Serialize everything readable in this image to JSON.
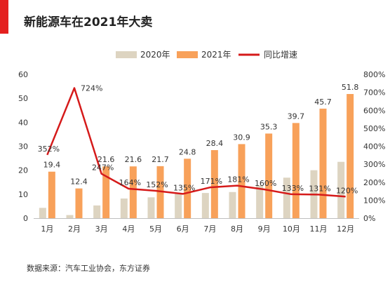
{
  "header": {
    "title": "新能源车在2021年大卖",
    "accent_color": "#e4201f"
  },
  "footer": {
    "source": "数据来源：汽车工业协会，东方证券"
  },
  "colors": {
    "series_2020": "#ddd4c1",
    "series_2021": "#f8a15a",
    "growth_line": "#d51a1a"
  },
  "chart_data": {
    "type": "bar",
    "categories": [
      "1月",
      "2月",
      "3月",
      "4月",
      "5月",
      "6月",
      "7月",
      "8月",
      "9月",
      "10月",
      "11月",
      "12月"
    ],
    "series": [
      {
        "name": "2020年",
        "type": "bar",
        "axis": "left",
        "values": [
          4.3,
          1.3,
          5.3,
          8.2,
          8.7,
          10.5,
          10.5,
          10.9,
          13.8,
          16.9,
          20.0,
          23.5
        ]
      },
      {
        "name": "2021年",
        "type": "bar",
        "axis": "left",
        "values": [
          19.4,
          12.4,
          21.6,
          21.6,
          21.7,
          24.8,
          28.4,
          30.9,
          35.3,
          39.7,
          45.7,
          51.8
        ],
        "labels": [
          "19.4",
          "12.4",
          "21.6",
          "21.6",
          "21.7",
          "24.8",
          "28.4",
          "30.9",
          "35.3",
          "39.7",
          "45.7",
          "51.8"
        ]
      },
      {
        "name": "同比增速",
        "type": "line",
        "axis": "right",
        "values": [
          352,
          724,
          247,
          164,
          152,
          135,
          171,
          181,
          160,
          133,
          131,
          120
        ],
        "labels": [
          "352%",
          "724%",
          "247%",
          "164%",
          "152%",
          "135%",
          "171%",
          "181%",
          "160%",
          "133%",
          "131%",
          "120%"
        ]
      }
    ],
    "y_left": {
      "lim": [
        0,
        60
      ],
      "ticks": [
        "0",
        "10",
        "20",
        "30",
        "40",
        "50",
        "60"
      ]
    },
    "y_right": {
      "lim": [
        0,
        800
      ],
      "ticks": [
        "0%",
        "100%",
        "200%",
        "300%",
        "400%",
        "500%",
        "600%",
        "700%",
        "800%"
      ]
    },
    "grid": false,
    "legend_position": "top"
  }
}
